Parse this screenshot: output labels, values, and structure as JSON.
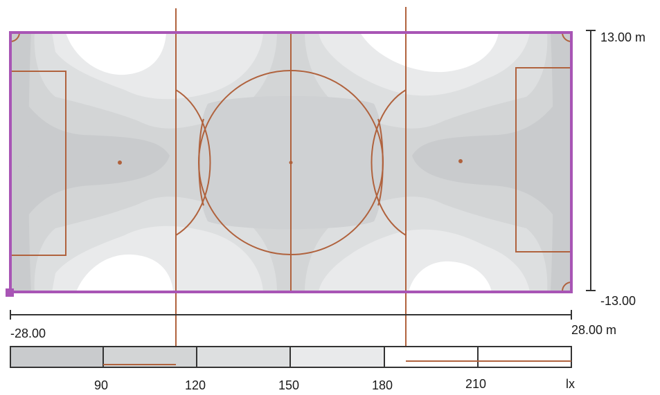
{
  "plan": {
    "y_axis": {
      "top_label": "13.00 m",
      "bottom_label": "-13.00"
    },
    "x_axis": {
      "left_label": "-28.00",
      "right_label": "28.00 m"
    }
  },
  "legend": {
    "ticks": [
      "90",
      "120",
      "150",
      "180",
      "210"
    ],
    "unit": "lx"
  },
  "colors": {
    "field_border": "#a855b5",
    "markings": "#b0623d",
    "dimension": "#333333",
    "shade_darkest": "#c9cbcd",
    "shade_dark": "#d3d5d6",
    "shade_mid": "#dddfe0",
    "shade_light": "#e9eaeb",
    "shade_lightest": "#ffffff"
  }
}
